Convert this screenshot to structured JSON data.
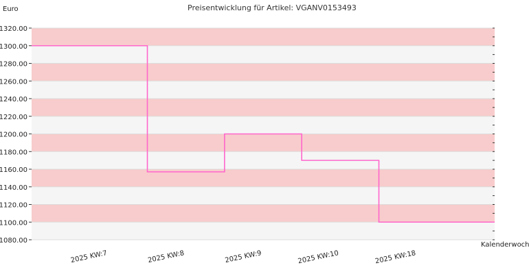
{
  "chart_data": {
    "type": "line",
    "title": "Preisentwicklung für Artikel: VGANV0153493",
    "ylabel": "Euro",
    "xlabel": "Kalenderwoche",
    "ylim": [
      1080,
      1320
    ],
    "y_ticks": [
      "1080.00",
      "1100.00",
      "1120.00",
      "1140.00",
      "1160.00",
      "1180.00",
      "1200.00",
      "1220.00",
      "1240.00",
      "1260.00",
      "1280.00",
      "1300.00",
      "1320.00"
    ],
    "categories": [
      "2025 KW:7",
      "2025 KW:8",
      "2025 KW:9",
      "2025 KW:10",
      "2025 KW:18"
    ],
    "series": [
      {
        "values": [
          1300,
          1157,
          1200,
          1170,
          1100
        ]
      }
    ],
    "step": true,
    "grid": true,
    "band_colors": [
      "#f8cccc",
      "#f5f5f5"
    ],
    "line_color": "#ff66cc"
  }
}
